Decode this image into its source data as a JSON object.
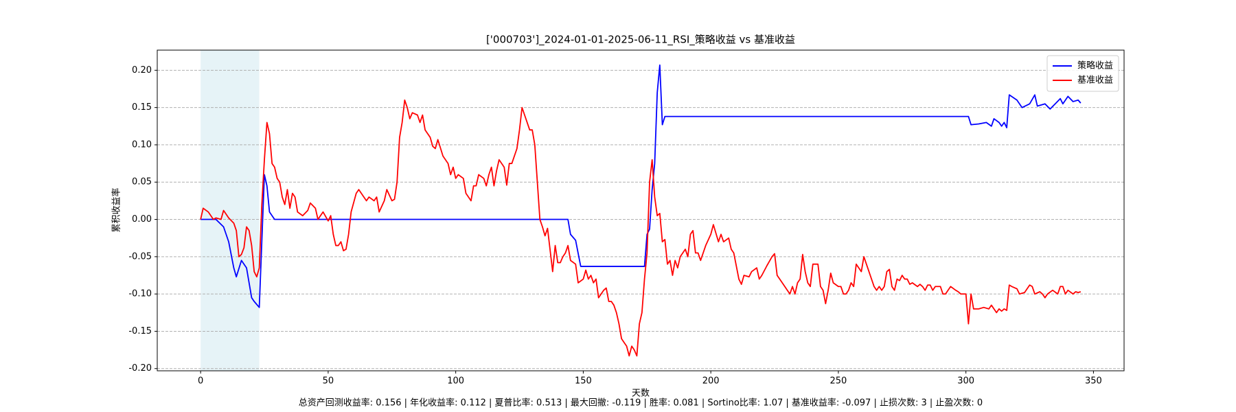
{
  "chart_data": {
    "type": "line",
    "title": "['000703']_2024-01-01-2025-06-11_RSI_策略收益 vs 基准收益",
    "xlabel": "天数",
    "ylabel": "累积收益率",
    "footer": "总资产回测收益率: 0.156 | 年化收益率: 0.112 | 夏普比率: 0.513 | 最大回撤: -0.119 | 胜率: 0.081 | Sortino比率: 1.07 | 基准收益率: -0.097 | 止损次数: 3 | 止盈次数: 0",
    "xlim": [
      -17,
      362
    ],
    "ylim": [
      -0.203,
      0.227
    ],
    "xticks": [
      0,
      50,
      100,
      150,
      200,
      250,
      300,
      350
    ],
    "yticks": [
      {
        "value": -0.2,
        "label": "-0.20"
      },
      {
        "value": -0.15,
        "label": "-0.15"
      },
      {
        "value": -0.1,
        "label": "-0.10"
      },
      {
        "value": -0.05,
        "label": "-0.05"
      },
      {
        "value": 0,
        "label": "0.00"
      },
      {
        "value": 0.05,
        "label": "0.05"
      },
      {
        "value": 0.1,
        "label": "0.10"
      },
      {
        "value": 0.15,
        "label": "0.15"
      },
      {
        "value": 0.2,
        "label": "0.20"
      }
    ],
    "grid": true,
    "legend": "upper right",
    "shaded_region": [
      0,
      23
    ],
    "shaded_color": "#add8e6",
    "series": [
      {
        "name": "策略收益",
        "color": "#0000ff",
        "x": [
          0,
          6,
          9,
          11,
          13,
          14,
          16,
          18,
          20,
          21,
          23,
          25,
          26,
          27,
          28,
          29,
          144,
          145,
          147,
          149,
          174,
          175,
          176,
          177,
          178,
          179,
          180,
          181,
          182,
          301,
          302,
          305,
          308,
          310,
          311,
          313,
          314,
          315,
          316,
          317,
          320,
          322,
          325,
          327,
          328,
          331,
          333,
          335,
          337,
          338,
          340,
          342,
          344,
          345
        ],
        "values": [
          0,
          0,
          -0.01,
          -0.03,
          -0.065,
          -0.077,
          -0.055,
          -0.065,
          -0.105,
          -0.11,
          -0.118,
          0.06,
          0.045,
          0.01,
          0.005,
          0,
          0,
          -0.02,
          -0.028,
          -0.063,
          -0.063,
          -0.02,
          -0.013,
          0.04,
          0.075,
          0.17,
          0.207,
          0.127,
          0.138,
          0.138,
          0.127,
          0.128,
          0.13,
          0.125,
          0.135,
          0.13,
          0.125,
          0.13,
          0.123,
          0.167,
          0.16,
          0.15,
          0.155,
          0.167,
          0.152,
          0.155,
          0.148,
          0.155,
          0.162,
          0.155,
          0.165,
          0.158,
          0.16,
          0.156
        ]
      },
      {
        "name": "基准收益",
        "color": "#ff0000",
        "x": [
          0,
          1,
          3,
          5,
          6,
          8,
          9,
          11,
          13,
          14,
          15,
          16,
          17,
          18,
          19,
          20,
          21,
          22,
          23,
          24,
          25,
          26,
          27,
          28,
          29,
          30,
          31,
          32,
          33,
          34,
          35,
          36,
          37,
          38,
          40,
          42,
          43,
          45,
          46,
          48,
          50,
          51,
          52,
          53,
          54,
          55,
          56,
          57,
          58,
          59,
          61,
          62,
          64,
          65,
          66,
          68,
          69,
          70,
          72,
          73,
          75,
          76,
          77,
          78,
          79,
          80,
          81,
          82,
          83,
          85,
          86,
          87,
          88,
          90,
          91,
          92,
          93,
          95,
          97,
          98,
          99,
          100,
          101,
          103,
          104,
          106,
          107,
          108,
          109,
          111,
          112,
          113,
          114,
          115,
          116,
          117,
          119,
          120,
          121,
          122,
          124,
          125,
          126,
          127,
          128,
          129,
          130,
          131,
          132,
          133,
          134,
          135,
          136,
          138,
          139,
          140,
          141,
          142,
          143,
          144,
          145,
          147,
          148,
          150,
          151,
          152,
          153,
          154,
          155,
          156,
          157,
          158,
          159,
          160,
          161,
          162,
          163,
          164,
          165,
          166,
          167,
          168,
          169,
          170,
          171,
          172,
          173,
          174,
          175,
          176,
          177,
          178,
          179,
          180,
          181,
          182,
          183,
          184,
          185,
          186,
          187,
          188,
          190,
          191,
          192,
          193,
          194,
          195,
          196,
          198,
          200,
          201,
          203,
          204,
          205,
          207,
          208,
          209,
          211,
          212,
          213,
          215,
          216,
          218,
          219,
          220,
          222,
          224,
          225,
          226,
          227,
          229,
          230,
          231,
          232,
          233,
          234,
          235,
          236,
          237,
          238,
          239,
          240,
          242,
          243,
          244,
          245,
          246,
          247,
          248,
          250,
          251,
          252,
          253,
          254,
          255,
          256,
          257,
          258,
          259,
          260,
          261,
          262,
          263,
          264,
          265,
          266,
          267,
          268,
          269,
          270,
          271,
          272,
          273,
          274,
          275,
          276,
          277,
          278,
          279,
          281,
          282,
          283,
          284,
          285,
          286,
          287,
          288,
          290,
          291,
          292,
          294,
          296,
          297,
          298,
          300,
          301,
          302,
          303,
          305,
          307,
          309,
          310,
          311,
          312,
          313,
          314,
          315,
          316,
          317,
          318,
          320,
          321,
          323,
          324,
          325,
          326,
          327,
          329,
          330,
          331,
          332,
          334,
          336,
          337,
          338,
          339,
          340,
          342,
          343,
          344,
          345
        ],
        "values": [
          0,
          0.015,
          0.01,
          0,
          0.002,
          0,
          0.012,
          0.002,
          -0.005,
          -0.015,
          -0.05,
          -0.047,
          -0.038,
          -0.01,
          -0.015,
          -0.035,
          -0.07,
          -0.077,
          -0.065,
          0.02,
          0.08,
          0.13,
          0.115,
          0.075,
          0.07,
          0.055,
          0.05,
          0.03,
          0.02,
          0.04,
          0.015,
          0.035,
          0.03,
          0.01,
          0.005,
          0.012,
          0.022,
          0.015,
          0,
          0.01,
          -0.002,
          0.005,
          -0.02,
          -0.035,
          -0.035,
          -0.03,
          -0.042,
          -0.04,
          -0.02,
          0.01,
          0.035,
          0.04,
          0.03,
          0.025,
          0.03,
          0.025,
          0.03,
          0.01,
          0.025,
          0.04,
          0.025,
          0.027,
          0.05,
          0.11,
          0.13,
          0.16,
          0.15,
          0.135,
          0.143,
          0.14,
          0.13,
          0.14,
          0.12,
          0.11,
          0.098,
          0.095,
          0.107,
          0.085,
          0.075,
          0.06,
          0.07,
          0.055,
          0.06,
          0.055,
          0.035,
          0.025,
          0.045,
          0.045,
          0.06,
          0.055,
          0.045,
          0.06,
          0.07,
          0.045,
          0.065,
          0.08,
          0.07,
          0.046,
          0.075,
          0.075,
          0.095,
          0.12,
          0.15,
          0.14,
          0.13,
          0.12,
          0.12,
          0.1,
          0.05,
          0,
          -0.01,
          -0.022,
          -0.012,
          -0.07,
          -0.035,
          -0.058,
          -0.058,
          -0.05,
          -0.045,
          -0.035,
          -0.055,
          -0.06,
          -0.085,
          -0.08,
          -0.068,
          -0.08,
          -0.075,
          -0.085,
          -0.08,
          -0.105,
          -0.1,
          -0.095,
          -0.092,
          -0.11,
          -0.11,
          -0.115,
          -0.125,
          -0.14,
          -0.16,
          -0.165,
          -0.17,
          -0.183,
          -0.17,
          -0.175,
          -0.183,
          -0.14,
          -0.125,
          -0.08,
          -0.045,
          0.05,
          0.08,
          0.03,
          0.005,
          0.008,
          -0.03,
          -0.027,
          -0.06,
          -0.055,
          -0.075,
          -0.055,
          -0.065,
          -0.05,
          -0.04,
          -0.05,
          -0.02,
          -0.015,
          -0.045,
          -0.045,
          -0.055,
          -0.035,
          -0.02,
          -0.007,
          -0.03,
          -0.02,
          -0.03,
          -0.025,
          -0.04,
          -0.045,
          -0.08,
          -0.087,
          -0.075,
          -0.077,
          -0.07,
          -0.065,
          -0.08,
          -0.075,
          -0.062,
          -0.05,
          -0.046,
          -0.075,
          -0.08,
          -0.09,
          -0.095,
          -0.1,
          -0.09,
          -0.1,
          -0.085,
          -0.08,
          -0.047,
          -0.07,
          -0.085,
          -0.09,
          -0.06,
          -0.06,
          -0.09,
          -0.095,
          -0.113,
          -0.095,
          -0.072,
          -0.085,
          -0.09,
          -0.09,
          -0.1,
          -0.1,
          -0.095,
          -0.085,
          -0.09,
          -0.06,
          -0.065,
          -0.07,
          -0.05,
          -0.06,
          -0.07,
          -0.08,
          -0.09,
          -0.095,
          -0.09,
          -0.095,
          -0.09,
          -0.07,
          -0.067,
          -0.09,
          -0.095,
          -0.08,
          -0.082,
          -0.075,
          -0.08,
          -0.08,
          -0.087,
          -0.085,
          -0.09,
          -0.087,
          -0.09,
          -0.095,
          -0.088,
          -0.088,
          -0.095,
          -0.09,
          -0.09,
          -0.1,
          -0.1,
          -0.09,
          -0.095,
          -0.097,
          -0.1,
          -0.1,
          -0.14,
          -0.1,
          -0.12,
          -0.12,
          -0.118,
          -0.12,
          -0.115,
          -0.12,
          -0.125,
          -0.12,
          -0.123,
          -0.12,
          -0.122,
          -0.088,
          -0.09,
          -0.093,
          -0.1,
          -0.098,
          -0.093,
          -0.088,
          -0.09,
          -0.1,
          -0.097,
          -0.1,
          -0.105,
          -0.1,
          -0.095,
          -0.1,
          -0.09,
          -0.09,
          -0.1,
          -0.095,
          -0.1,
          -0.097,
          -0.098,
          -0.097
        ]
      }
    ]
  }
}
